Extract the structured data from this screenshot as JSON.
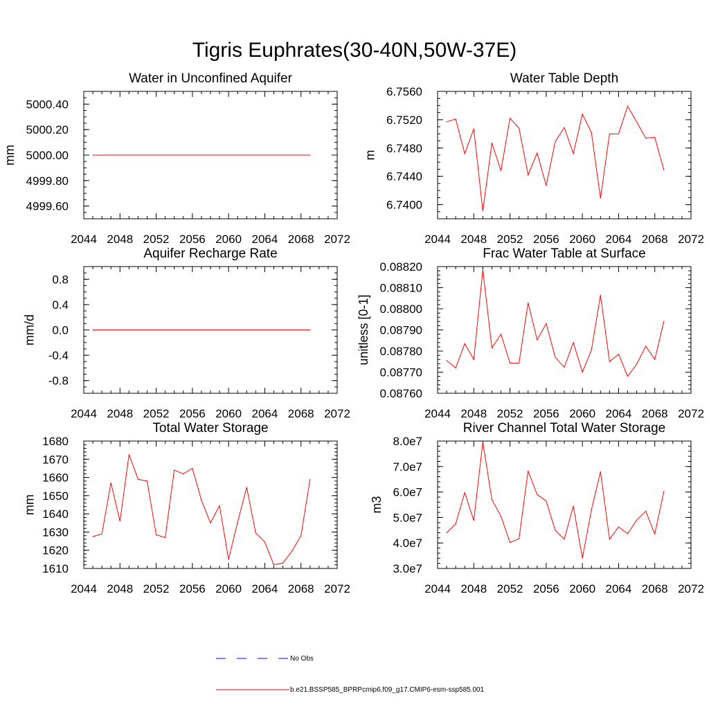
{
  "title": "Tigris Euphrates(30-40N,50W-37E)",
  "colors": {
    "model": "#ff0000",
    "obs": "#0000ff",
    "axis": "#000000"
  },
  "legend": [
    {
      "label": "No Obs",
      "color": "#0000ff",
      "style": "dashed"
    },
    {
      "label": "b.e21.BSSP585_BPRPcmip6.f09_g17.CMIP6-esm-ssp585.001",
      "color": "#ff0000",
      "style": "solid"
    }
  ],
  "chart_data": [
    {
      "type": "line",
      "title": "Water in Unconfined Aquifer",
      "ylabel": "mm",
      "xlim": [
        2044,
        2072
      ],
      "ylim": [
        4999.5,
        5000.5
      ],
      "x_ticks": [
        "2044",
        "2048",
        "2052",
        "2056",
        "2060",
        "2064",
        "2068",
        "2072"
      ],
      "y_ticks": [
        {
          "value": 4999.6,
          "label": "4999.60"
        },
        {
          "value": 4999.8,
          "label": "4999.80"
        },
        {
          "value": 5000.0,
          "label": "5000.00"
        },
        {
          "value": 5000.2,
          "label": "5000.20"
        },
        {
          "value": 5000.4,
          "label": "5000.40"
        }
      ],
      "y_minor_step": 0.05,
      "series": [
        {
          "name": "b.e21.BSSP585_BPRPcmip6.f09_g17.CMIP6-esm-ssp585.001",
          "x": [
            2045,
            2046,
            2047,
            2048,
            2049,
            2050,
            2051,
            2052,
            2053,
            2054,
            2055,
            2056,
            2057,
            2058,
            2059,
            2060,
            2061,
            2062,
            2063,
            2064,
            2065,
            2066,
            2067,
            2068,
            2069
          ],
          "values": [
            5000,
            5000,
            5000,
            5000,
            5000,
            5000,
            5000,
            5000,
            5000,
            5000,
            5000,
            5000,
            5000,
            5000,
            5000,
            5000,
            5000,
            5000,
            5000,
            5000,
            5000,
            5000,
            5000,
            5000,
            5000
          ]
        }
      ]
    },
    {
      "type": "line",
      "title": "Water Table Depth",
      "ylabel": "m",
      "xlim": [
        2044,
        2072
      ],
      "ylim": [
        6.738,
        6.756
      ],
      "x_ticks": [
        "2044",
        "2048",
        "2052",
        "2056",
        "2060",
        "2064",
        "2068",
        "2072"
      ],
      "y_ticks": [
        {
          "value": 6.74,
          "label": "6.7400"
        },
        {
          "value": 6.744,
          "label": "6.7440"
        },
        {
          "value": 6.748,
          "label": "6.7480"
        },
        {
          "value": 6.752,
          "label": "6.7520"
        },
        {
          "value": 6.756,
          "label": "6.7560"
        }
      ],
      "y_minor_step": 0.001,
      "series": [
        {
          "name": "b.e21.BSSP585_BPRPcmip6.f09_g17.CMIP6-esm-ssp585.001",
          "x": [
            2045,
            2046,
            2047,
            2048,
            2049,
            2050,
            2051,
            2052,
            2053,
            2054,
            2055,
            2056,
            2057,
            2058,
            2059,
            2060,
            2061,
            2062,
            2063,
            2064,
            2065,
            2066,
            2067,
            2068,
            2069
          ],
          "values": [
            6.7517,
            6.7521,
            6.7472,
            6.7507,
            6.7391,
            6.7487,
            6.7448,
            6.7522,
            6.7508,
            6.7442,
            6.7473,
            6.7427,
            6.7489,
            6.7509,
            6.7472,
            6.7528,
            6.7502,
            6.7409,
            6.75,
            6.75,
            6.7539,
            6.7517,
            6.7494,
            6.7495,
            6.7449
          ]
        }
      ]
    },
    {
      "type": "line",
      "title": "Aquifer Recharge Rate",
      "ylabel": "mm/d",
      "xlim": [
        2044,
        2072
      ],
      "ylim": [
        -1.0,
        1.0
      ],
      "x_ticks": [
        "2044",
        "2048",
        "2052",
        "2056",
        "2060",
        "2064",
        "2068",
        "2072"
      ],
      "y_ticks": [
        {
          "value": -0.8,
          "label": "-0.8"
        },
        {
          "value": -0.4,
          "label": "-0.4"
        },
        {
          "value": 0.0,
          "label": "0.0"
        },
        {
          "value": 0.4,
          "label": "0.4"
        },
        {
          "value": 0.8,
          "label": "0.8"
        }
      ],
      "y_minor_step": 0.1,
      "series": [
        {
          "name": "b.e21.BSSP585_BPRPcmip6.f09_g17.CMIP6-esm-ssp585.001",
          "x": [
            2045,
            2046,
            2047,
            2048,
            2049,
            2050,
            2051,
            2052,
            2053,
            2054,
            2055,
            2056,
            2057,
            2058,
            2059,
            2060,
            2061,
            2062,
            2063,
            2064,
            2065,
            2066,
            2067,
            2068,
            2069
          ],
          "values": [
            0,
            0,
            0,
            0,
            0,
            0,
            0,
            0,
            0,
            0,
            0,
            0,
            0,
            0,
            0,
            0,
            0,
            0,
            0,
            0,
            0,
            0,
            0,
            0,
            0
          ]
        }
      ]
    },
    {
      "type": "line",
      "title": "Frac Water Table at Surface",
      "ylabel": "unitless [0-1]",
      "xlim": [
        2044,
        2072
      ],
      "ylim": [
        0.0876,
        0.0882
      ],
      "x_ticks": [
        "2044",
        "2048",
        "2052",
        "2056",
        "2060",
        "2064",
        "2068",
        "2072"
      ],
      "y_ticks": [
        {
          "value": 0.0876,
          "label": "0.08760"
        },
        {
          "value": 0.0877,
          "label": "0.08770"
        },
        {
          "value": 0.0878,
          "label": "0.08780"
        },
        {
          "value": 0.0879,
          "label": "0.08790"
        },
        {
          "value": 0.088,
          "label": "0.08800"
        },
        {
          "value": 0.0881,
          "label": "0.08810"
        },
        {
          "value": 0.0882,
          "label": "0.08820"
        }
      ],
      "y_minor_step": 2e-05,
      "series": [
        {
          "name": "b.e21.BSSP585_BPRPcmip6.f09_g17.CMIP6-esm-ssp585.001",
          "x": [
            2045,
            2046,
            2047,
            2048,
            2049,
            2050,
            2051,
            2052,
            2053,
            2054,
            2055,
            2056,
            2057,
            2058,
            2059,
            2060,
            2061,
            2062,
            2063,
            2064,
            2065,
            2066,
            2067,
            2068,
            2069
          ],
          "values": [
            0.087755,
            0.08772,
            0.087835,
            0.08776,
            0.088185,
            0.087815,
            0.08788,
            0.087743,
            0.087743,
            0.088028,
            0.087853,
            0.08793,
            0.08777,
            0.087723,
            0.08784,
            0.0877,
            0.087805,
            0.088065,
            0.08775,
            0.087785,
            0.08768,
            0.087738,
            0.087823,
            0.08776,
            0.08794
          ]
        }
      ]
    },
    {
      "type": "line",
      "title": "Total Water Storage",
      "ylabel": "mm",
      "xlim": [
        2044,
        2072
      ],
      "ylim": [
        1610,
        1680
      ],
      "x_ticks": [
        "2044",
        "2048",
        "2052",
        "2056",
        "2060",
        "2064",
        "2068",
        "2072"
      ],
      "y_ticks": [
        {
          "value": 1610,
          "label": "1610"
        },
        {
          "value": 1620,
          "label": "1620"
        },
        {
          "value": 1630,
          "label": "1630"
        },
        {
          "value": 1640,
          "label": "1640"
        },
        {
          "value": 1650,
          "label": "1650"
        },
        {
          "value": 1660,
          "label": "1660"
        },
        {
          "value": 1670,
          "label": "1670"
        },
        {
          "value": 1680,
          "label": "1680"
        }
      ],
      "y_minor_step": 2,
      "series": [
        {
          "name": "b.e21.BSSP585_BPRPcmip6.f09_g17.CMIP6-esm-ssp585.001",
          "x": [
            2045,
            2046,
            2047,
            2048,
            2049,
            2050,
            2051,
            2052,
            2053,
            2054,
            2055,
            2056,
            2057,
            2058,
            2059,
            2060,
            2061,
            2062,
            2063,
            2064,
            2065,
            2066,
            2067,
            2068,
            2069
          ],
          "values": [
            1627.5,
            1629.0,
            1657.0,
            1636.0,
            1672.5,
            1659.0,
            1658.0,
            1628.5,
            1627.0,
            1664.0,
            1662.0,
            1665.0,
            1647.5,
            1635.0,
            1644.5,
            1615.0,
            1635.5,
            1654.5,
            1629.5,
            1624.5,
            1612.0,
            1613.0,
            1619.5,
            1628.0,
            1659.0
          ]
        }
      ]
    },
    {
      "type": "line",
      "title": "River Channel Total Water Storage",
      "ylabel": "m3",
      "xlim": [
        2044,
        2072
      ],
      "ylim": [
        30000000,
        80000000
      ],
      "x_ticks": [
        "2044",
        "2048",
        "2052",
        "2056",
        "2060",
        "2064",
        "2068",
        "2072"
      ],
      "y_ticks": [
        {
          "value": 30000000,
          "label": "3.0e7"
        },
        {
          "value": 40000000,
          "label": "4.0e7"
        },
        {
          "value": 50000000,
          "label": "5.0e7"
        },
        {
          "value": 60000000,
          "label": "6.0e7"
        },
        {
          "value": 70000000,
          "label": "7.0e7"
        },
        {
          "value": 80000000,
          "label": "8.0e7"
        }
      ],
      "y_minor_step": 2000000,
      "series": [
        {
          "name": "b.e21.BSSP585_BPRPcmip6.f09_g17.CMIP6-esm-ssp585.001",
          "x": [
            2045,
            2046,
            2047,
            2048,
            2049,
            2050,
            2051,
            2052,
            2053,
            2054,
            2055,
            2056,
            2057,
            2058,
            2059,
            2060,
            2061,
            2062,
            2063,
            2064,
            2065,
            2066,
            2067,
            2068,
            2069
          ],
          "values": [
            44000000,
            47500000,
            59800000,
            48800000,
            79500000,
            57000000,
            50500000,
            40200000,
            41700000,
            68300000,
            59000000,
            56500000,
            45000000,
            41500000,
            54500000,
            34000000,
            53000000,
            68000000,
            41500000,
            46300000,
            43600000,
            49000000,
            52500000,
            43500000,
            60200000
          ]
        }
      ]
    }
  ]
}
